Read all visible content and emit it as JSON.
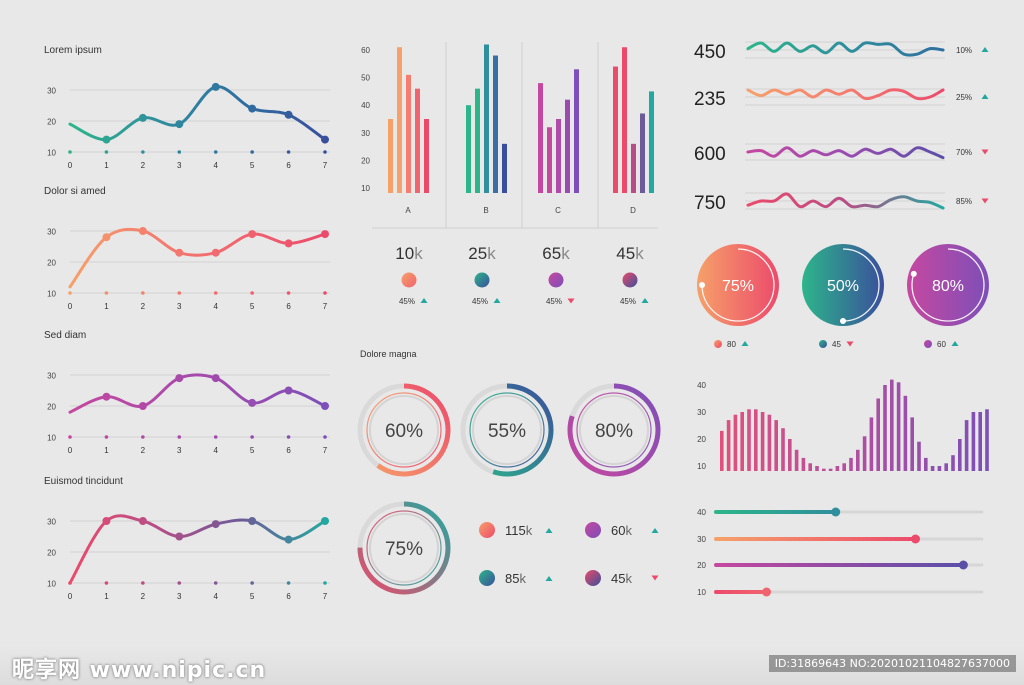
{
  "line_panels": [
    {
      "title": "Lorem ipsum",
      "x": [
        0,
        1,
        2,
        3,
        4,
        5,
        6,
        7
      ],
      "y": [
        19,
        14,
        21,
        19,
        31,
        24,
        22,
        14
      ],
      "colors": [
        "#2db58a",
        "#2f8f9d",
        "#2f6fa0",
        "#3a4f9c"
      ]
    },
    {
      "title": "Dolor si amed",
      "x": [
        0,
        1,
        2,
        3,
        4,
        5,
        6,
        7
      ],
      "y": [
        12,
        28,
        30,
        23,
        23,
        29,
        26,
        29
      ],
      "colors": [
        "#f6a06a",
        "#f47d6f",
        "#f0646f",
        "#ec4a6b"
      ]
    },
    {
      "title": "Sed diam",
      "x": [
        0,
        1,
        2,
        3,
        4,
        5,
        6,
        7
      ],
      "y": [
        18,
        23,
        20,
        29,
        29,
        21,
        25,
        20
      ],
      "colors": [
        "#c548a0",
        "#b049a8",
        "#9a4bb0",
        "#7d4fb8"
      ]
    },
    {
      "title": "Euismod tincidunt",
      "x": [
        0,
        1,
        2,
        3,
        4,
        5,
        6,
        7
      ],
      "y": [
        10,
        30,
        30,
        25,
        29,
        30,
        24,
        30
      ],
      "colors": [
        "#ec4a6b",
        "#b74e86",
        "#6d5a98",
        "#23a8a0"
      ]
    }
  ],
  "line_axis": {
    "yticks": [
      10,
      20,
      30
    ],
    "xticks": [
      "0",
      "1",
      "2",
      "3",
      "4",
      "5",
      "6",
      "7"
    ]
  },
  "bar_chart": {
    "yticks": [
      10,
      20,
      30,
      40,
      50,
      60
    ],
    "groups": [
      {
        "label": "A",
        "values": [
          35,
          61,
          51,
          46,
          35
        ],
        "colors": [
          "#f6a06a",
          "#f47d6f",
          "#f0646f",
          "#ec4a6b"
        ]
      },
      {
        "label": "B",
        "values": [
          40,
          46,
          62,
          58,
          26
        ],
        "colors": [
          "#2db58a",
          "#2f8f9d",
          "#3a6fa6",
          "#3a4f9c"
        ]
      },
      {
        "label": "C",
        "values": [
          48,
          32,
          35,
          42,
          53
        ],
        "colors": [
          "#c548a0",
          "#b049a8",
          "#9a4bb0",
          "#7d4fb8"
        ]
      },
      {
        "label": "D",
        "values": [
          54,
          61,
          26,
          37,
          45
        ],
        "colors": [
          "#ec4a6b",
          "#b74e86",
          "#6d5a98",
          "#23a8a0"
        ]
      }
    ],
    "stats": [
      {
        "value": "10",
        "unit": "k",
        "pct": "45%",
        "trend": "up",
        "colors": [
          "#f6a06a",
          "#f0646f"
        ]
      },
      {
        "value": "25",
        "unit": "k",
        "pct": "45%",
        "trend": "up",
        "colors": [
          "#2db58a",
          "#3a4f9c"
        ]
      },
      {
        "value": "65",
        "unit": "k",
        "pct": "45%",
        "trend": "down",
        "colors": [
          "#c548a0",
          "#7d4fb8"
        ]
      },
      {
        "value": "45",
        "unit": "k",
        "pct": "45%",
        "trend": "up",
        "colors": [
          "#ec4a6b",
          "#3a4f9c"
        ]
      }
    ]
  },
  "sparklines": [
    {
      "value": "450",
      "pct": "10%",
      "trend": "up",
      "colors": [
        "#2db58a",
        "#2f8f9d",
        "#2f6fa0"
      ]
    },
    {
      "value": "235",
      "pct": "25%",
      "trend": "up",
      "colors": [
        "#f6a06a",
        "#f47d6f",
        "#ec4a6b"
      ]
    },
    {
      "value": "600",
      "pct": "70%",
      "trend": "down",
      "colors": [
        "#c548a0",
        "#9a4bb0",
        "#5a4fa8"
      ]
    },
    {
      "value": "750",
      "pct": "85%",
      "trend": "down",
      "colors": [
        "#ec4a6b",
        "#b74e86",
        "#23a8a0"
      ]
    }
  ],
  "big_gauges": [
    {
      "label": "75%",
      "value": 0.75,
      "sub": "80",
      "trend": "up",
      "colors": [
        "#f6a06a",
        "#ec4a6b"
      ]
    },
    {
      "label": "50%",
      "value": 0.5,
      "sub": "45",
      "trend": "down",
      "colors": [
        "#2db58a",
        "#3a4f9c"
      ]
    },
    {
      "label": "80%",
      "value": 0.8,
      "sub": "60",
      "trend": "up",
      "colors": [
        "#c548a0",
        "#7d4fb8"
      ]
    }
  ],
  "ring_section": {
    "title": "Dolore magna",
    "rings": [
      {
        "label": "60%",
        "value": 0.6,
        "colors": [
          "#f6a06a",
          "#ec4a6b"
        ]
      },
      {
        "label": "55%",
        "value": 0.55,
        "colors": [
          "#2db58a",
          "#3a4f9c"
        ]
      },
      {
        "label": "80%",
        "value": 0.8,
        "colors": [
          "#c548a0",
          "#7d4fb8"
        ]
      },
      {
        "label": "75%",
        "value": 0.75,
        "colors": [
          "#ec4a6b",
          "#23a8a0"
        ]
      }
    ],
    "stats": [
      {
        "value": "115",
        "unit": "k",
        "trend": "up",
        "colors": [
          "#f6a06a",
          "#ec4a6b"
        ]
      },
      {
        "value": "60",
        "unit": "k",
        "trend": "up",
        "colors": [
          "#c548a0",
          "#7d4fb8"
        ]
      },
      {
        "value": "85",
        "unit": "k",
        "trend": "up",
        "colors": [
          "#2db58a",
          "#3a4f9c"
        ]
      },
      {
        "value": "45",
        "unit": "k",
        "trend": "down",
        "colors": [
          "#ec4a6b",
          "#3a4f9c"
        ]
      }
    ]
  },
  "histogram": {
    "yticks": [
      10,
      20,
      30,
      40
    ],
    "values": [
      23,
      27,
      29,
      30,
      31,
      31,
      30,
      29,
      27,
      24,
      20,
      16,
      13,
      11,
      10,
      9,
      9,
      10,
      11,
      13,
      16,
      21,
      28,
      35,
      40,
      42,
      41,
      36,
      28,
      19,
      13,
      10,
      10,
      11,
      14,
      20,
      27,
      30,
      30,
      31
    ],
    "colors": [
      "#e2507c",
      "#b04fa0",
      "#7c4fb8"
    ]
  },
  "sliders": {
    "yticks": [
      40,
      30,
      20,
      10
    ],
    "rows": [
      {
        "value": 40,
        "position": 0.45,
        "colors": [
          "#2db58a",
          "#2f8f9d"
        ]
      },
      {
        "value": 30,
        "position": 0.75,
        "colors": [
          "#f6a06a",
          "#ec4a6b"
        ]
      },
      {
        "value": 20,
        "position": 0.93,
        "colors": [
          "#c548a0",
          "#5a4fa8"
        ]
      },
      {
        "value": 10,
        "position": 0.19,
        "colors": [
          "#ec4a6b",
          "#f0646f"
        ]
      }
    ]
  },
  "chart_data": [
    {
      "type": "line",
      "title": "Lorem ipsum",
      "x": [
        0,
        1,
        2,
        3,
        4,
        5,
        6,
        7
      ],
      "y": [
        19,
        14,
        21,
        19,
        31,
        24,
        22,
        14
      ],
      "ylim": [
        10,
        35
      ]
    },
    {
      "type": "line",
      "title": "Dolor si amed",
      "x": [
        0,
        1,
        2,
        3,
        4,
        5,
        6,
        7
      ],
      "y": [
        12,
        28,
        30,
        23,
        23,
        29,
        26,
        29
      ],
      "ylim": [
        10,
        35
      ]
    },
    {
      "type": "line",
      "title": "Sed diam",
      "x": [
        0,
        1,
        2,
        3,
        4,
        5,
        6,
        7
      ],
      "y": [
        18,
        23,
        20,
        29,
        29,
        21,
        25,
        20
      ],
      "ylim": [
        10,
        35
      ]
    },
    {
      "type": "line",
      "title": "Euismod tincidunt",
      "x": [
        0,
        1,
        2,
        3,
        4,
        5,
        6,
        7
      ],
      "y": [
        10,
        30,
        30,
        25,
        29,
        30,
        24,
        30
      ],
      "ylim": [
        10,
        35
      ]
    },
    {
      "type": "bar",
      "categories": [
        "A",
        "B",
        "C",
        "D"
      ],
      "series_per_category": 5,
      "values": [
        [
          35,
          61,
          51,
          46,
          35
        ],
        [
          40,
          46,
          62,
          58,
          26
        ],
        [
          48,
          32,
          35,
          42,
          53
        ],
        [
          54,
          61,
          26,
          37,
          45
        ]
      ],
      "ylim": [
        0,
        65
      ]
    },
    {
      "type": "bar",
      "title": "",
      "values": [
        23,
        27,
        29,
        30,
        31,
        31,
        30,
        29,
        27,
        24,
        20,
        16,
        13,
        11,
        10,
        9,
        9,
        10,
        11,
        13,
        16,
        21,
        28,
        35,
        40,
        42,
        41,
        36,
        28,
        19,
        13,
        10,
        10,
        11,
        14,
        20,
        27,
        30,
        30,
        31
      ],
      "ylim": [
        0,
        42
      ]
    }
  ],
  "watermark": {
    "logo": "昵享网 www.nipic.cn",
    "id": "ID:31869643 NO:20201021104827637000"
  }
}
